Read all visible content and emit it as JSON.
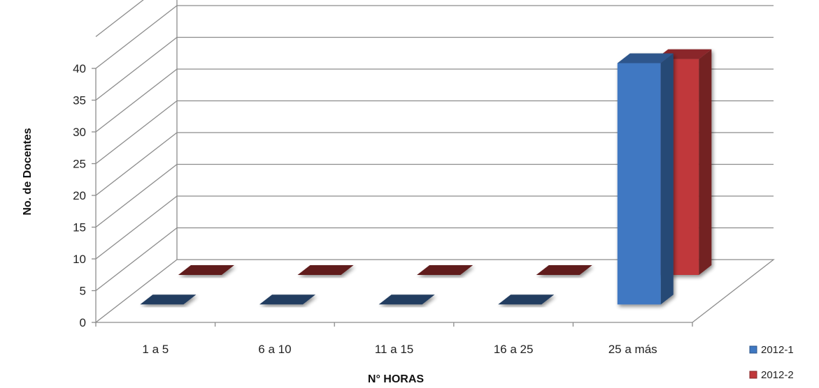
{
  "chart_data": {
    "type": "bar",
    "title": "",
    "xlabel": "N° HORAS",
    "ylabel": "No. de Docentes",
    "categories": [
      "1 a 5",
      "6 a 10",
      "11 a 15",
      "16 a 25",
      "25 a más"
    ],
    "series": [
      {
        "name": "2012-1",
        "values": [
          0,
          0,
          0,
          0,
          38
        ],
        "color": "#3f78c2"
      },
      {
        "name": "2012-2",
        "values": [
          0,
          0,
          0,
          0,
          34
        ],
        "color": "#c0383a"
      }
    ],
    "ylim": [
      0,
      40
    ],
    "yticks": [
      0,
      5,
      10,
      15,
      20,
      25,
      30,
      35,
      40
    ],
    "grid": true,
    "legend": "bottom-right",
    "style": "3d-clustered-column"
  }
}
